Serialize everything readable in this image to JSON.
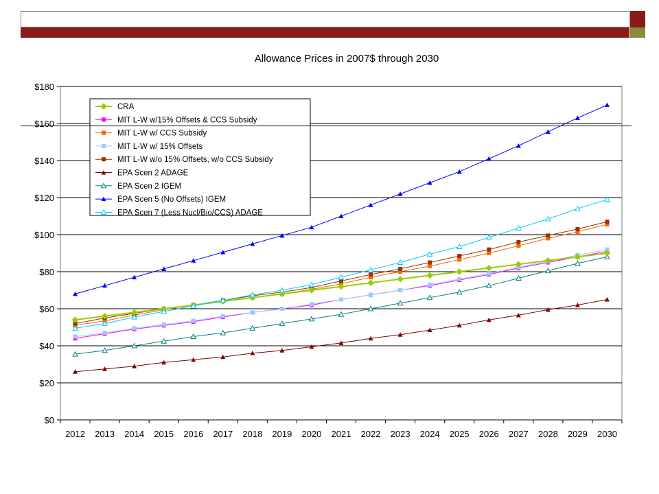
{
  "chart_data": {
    "type": "line",
    "title": "Allowance Prices in 2007$ through 2030",
    "xlabel": "",
    "ylabel": "",
    "x": [
      "2012",
      "2013",
      "2014",
      "2015",
      "2016",
      "2017",
      "2018",
      "2019",
      "2020",
      "2021",
      "2022",
      "2023",
      "2024",
      "2025",
      "2026",
      "2027",
      "2028",
      "2029",
      "2030"
    ],
    "ylim": [
      0,
      180
    ],
    "yticks": [
      0,
      20,
      40,
      60,
      80,
      100,
      120,
      140,
      160,
      180
    ],
    "ytick_labels": [
      "$0",
      "$20",
      "$40",
      "$60",
      "$80",
      "$100",
      "$120",
      "$140",
      "$160",
      "$180"
    ],
    "grid": "horizontal",
    "legend_position": "top-left",
    "series": [
      {
        "name": "CRA",
        "color": "#99cc00",
        "marker": "diamond",
        "values": [
          54,
          56,
          58,
          60,
          62,
          64,
          66,
          68,
          70,
          72,
          74,
          76,
          78,
          80,
          82,
          84,
          86,
          88,
          90
        ]
      },
      {
        "name": "MIT L-W w/15% Offsets & CCS Subsidy",
        "color": "#ff00ff",
        "marker": "square",
        "values": [
          44,
          46.5,
          49,
          51,
          53,
          55.5,
          58,
          60,
          62,
          65,
          67.5,
          70,
          72.5,
          75.5,
          78.5,
          82,
          85,
          88,
          91
        ]
      },
      {
        "name": "MIT L-W w/ CCS Subsidy",
        "color": "#ff6600",
        "marker": "square",
        "values": [
          51,
          53.5,
          56.5,
          59.5,
          62,
          64,
          66,
          68,
          70.5,
          73.5,
          77,
          80,
          83,
          86.5,
          90,
          94,
          98,
          101.5,
          105.5
        ]
      },
      {
        "name": "MIT L-W w/ 15% Offsets",
        "color": "#99ccff",
        "marker": "square",
        "values": [
          45,
          47,
          49.5,
          51.5,
          53.5,
          56,
          58,
          60,
          62.5,
          65,
          67.5,
          70,
          73,
          76,
          79,
          82.5,
          85.5,
          89,
          92
        ]
      },
      {
        "name": "MIT L-W w/o 15% Offsets, w/o CCS Subsidy",
        "color": "#993300",
        "marker": "square",
        "values": [
          52,
          55,
          57.5,
          60,
          62,
          64.5,
          67,
          69,
          71.5,
          75,
          78.5,
          81.5,
          85,
          88.5,
          92,
          96,
          99.5,
          103,
          107
        ]
      },
      {
        "name": "EPA Scen 2 ADAGE",
        "color": "#800000",
        "marker": "triangle",
        "values": [
          26,
          27.5,
          29,
          31,
          32.5,
          34,
          36,
          37.5,
          39.5,
          41.5,
          44,
          46,
          48.5,
          51,
          54,
          56.5,
          59.5,
          62,
          65
        ]
      },
      {
        "name": "EPA Scen 2 IGEM",
        "color": "#008080",
        "marker": "triangle-open",
        "values": [
          35.5,
          37.5,
          40,
          42.5,
          45,
          47,
          49.5,
          52,
          54.5,
          57,
          60,
          63,
          66,
          69,
          72.5,
          76.5,
          80.5,
          84.5,
          88
        ]
      },
      {
        "name": "EPA Scen 5 (No Offsets) IGEM",
        "color": "#0000ff",
        "marker": "triangle",
        "values": [
          68,
          72.5,
          77,
          81.5,
          86,
          90.5,
          95,
          99.5,
          104,
          110,
          116,
          122,
          128,
          134,
          141,
          148,
          155.5,
          163,
          170
        ]
      },
      {
        "name": "EPA Scen 7 (Less Nucl/Bio/CCS) ADAGE",
        "color": "#00ccff",
        "marker": "triangle-open",
        "values": [
          49.5,
          52,
          55.5,
          58.5,
          61.5,
          64.5,
          67.5,
          70,
          73,
          77,
          81,
          85,
          89.5,
          93.5,
          98.5,
          103.5,
          108.5,
          114,
          119
        ]
      }
    ]
  }
}
